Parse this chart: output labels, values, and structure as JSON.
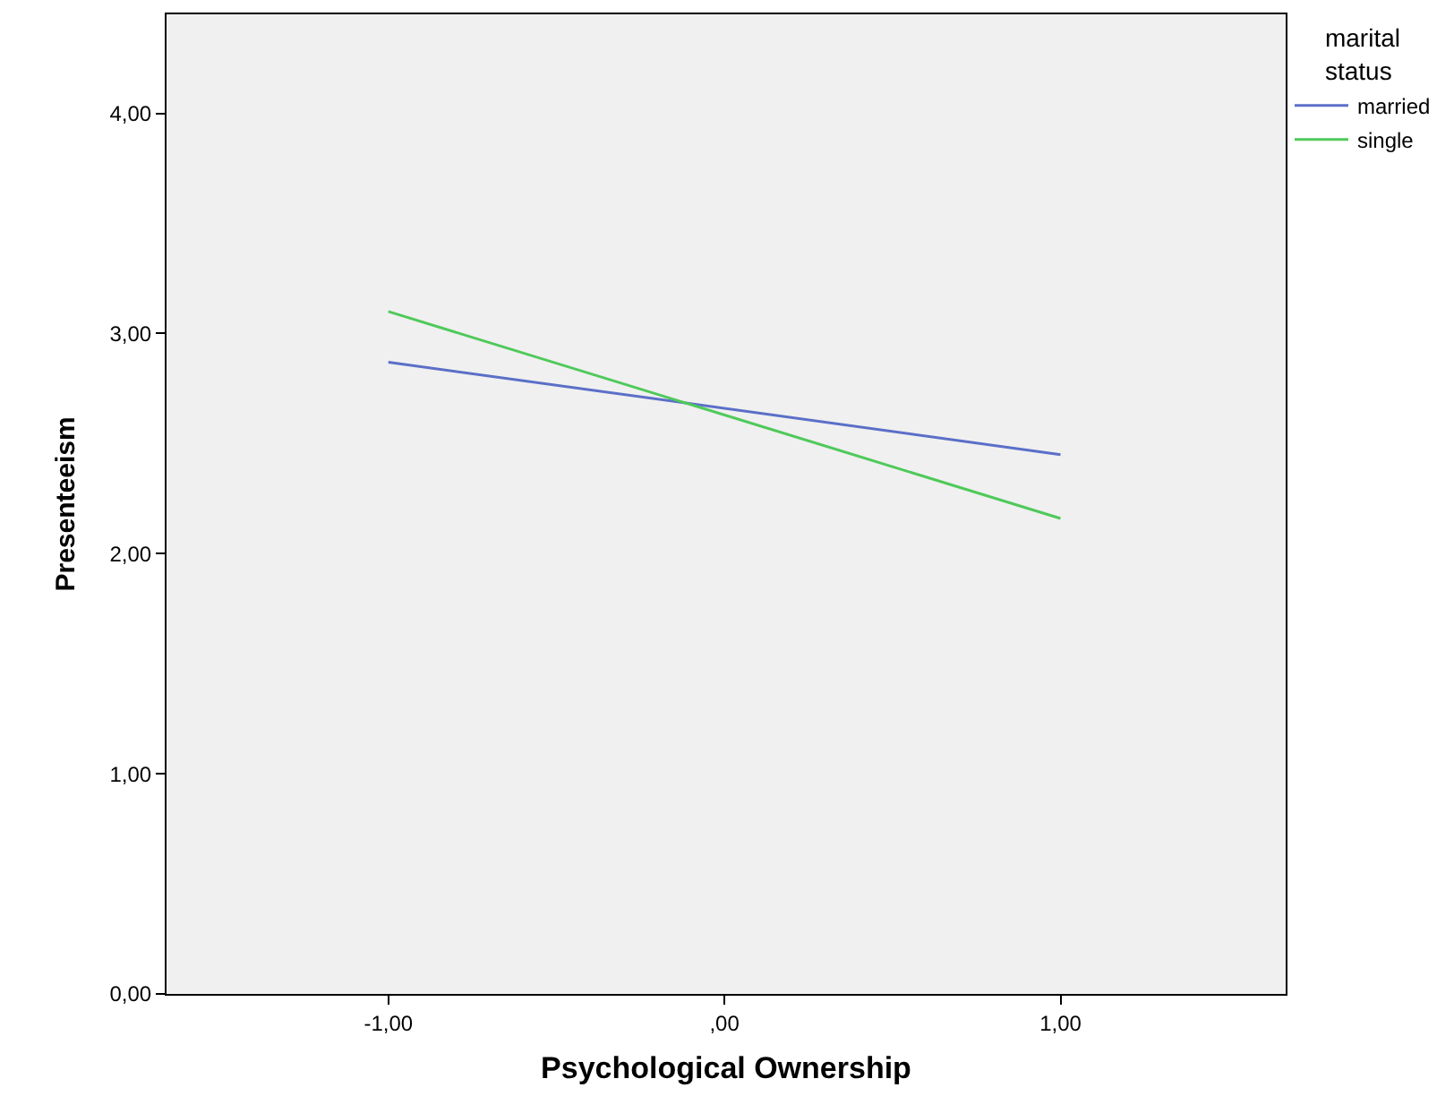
{
  "chart_data": {
    "type": "line",
    "xlabel": "Psychological Ownership",
    "ylabel": "Presenteeism",
    "legend_title": "marital status",
    "legend": "top right",
    "grid": false,
    "marker": "none",
    "line_style": "solid",
    "x": [
      -1,
      1
    ],
    "series": [
      {
        "name": "married",
        "color": "#5b6fc8",
        "values": [
          2.87,
          2.45
        ]
      },
      {
        "name": "single",
        "color": "#4fc95a",
        "values": [
          3.1,
          2.16
        ]
      }
    ],
    "xlim": [
      -1.66,
      1.67
    ],
    "xticks": [
      {
        "value": -1,
        "label": "-1,00"
      },
      {
        "value": 0,
        "label": ",00"
      },
      {
        "value": 1,
        "label": "1,00"
      }
    ],
    "ylim": [
      0,
      4.45
    ],
    "yticks": [
      {
        "value": 0,
        "label": "0,00"
      },
      {
        "value": 1,
        "label": "1,00"
      },
      {
        "value": 2,
        "label": "2,00"
      },
      {
        "value": 3,
        "label": "3,00"
      },
      {
        "value": 4,
        "label": "4,00"
      }
    ]
  }
}
